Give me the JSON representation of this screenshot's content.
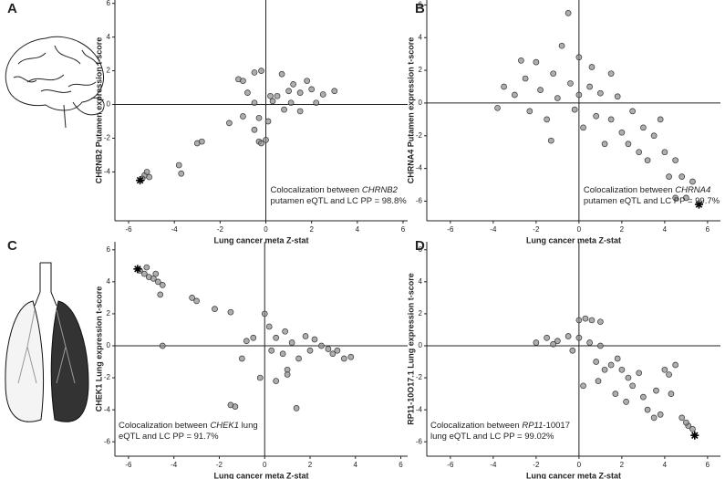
{
  "chart_data": [
    {
      "type": "scatter",
      "panel": "A",
      "x_label": "Lung cancer meta Z-stat",
      "y_label": "CHRNB2 Putamen expression t-score",
      "annotation": [
        [
          {
            "text": "Colocalization between "
          },
          {
            "text": "CHRNB2",
            "italic": true
          }
        ],
        [
          {
            "text": "putamen eQTL and LC PP = 98.8%"
          }
        ]
      ],
      "annotation_corner": "lower right",
      "color": "#8c8c8c",
      "xlim": [
        -6.6,
        6.2
      ],
      "ylim": [
        -6.9,
        6.2
      ],
      "xticks": [
        -6,
        -4,
        -2,
        0,
        2,
        4,
        6
      ],
      "yticks": [
        -4,
        -2,
        0,
        2,
        4,
        6
      ],
      "highlight": {
        "x": -5.5,
        "y": -4.5
      },
      "x": [
        -5.3,
        -5.2,
        -5.4,
        -5.1,
        -3.8,
        -3.7,
        -3.0,
        -2.8,
        -1.6,
        -1.0,
        -0.5,
        -0.3,
        0.0,
        -0.2,
        -0.5,
        0.2,
        0.5,
        1.0,
        1.2,
        1.5,
        2.0,
        2.5,
        3.0,
        -1.2,
        -1.0,
        -0.5,
        -0.2,
        0.3,
        0.8,
        1.5,
        1.1,
        2.2,
        0.1,
        -0.3,
        1.8,
        0.7,
        -0.8
      ],
      "values": [
        -4.2,
        -4.0,
        -4.4,
        -4.3,
        -3.6,
        -4.1,
        -2.3,
        -2.2,
        -1.1,
        -0.7,
        -1.5,
        -2.2,
        -2.1,
        -2.3,
        0.1,
        0.5,
        0.5,
        0.8,
        1.2,
        0.7,
        0.9,
        0.6,
        0.8,
        1.5,
        1.4,
        1.9,
        2.0,
        0.2,
        -0.3,
        -0.4,
        0.1,
        0.1,
        -1.0,
        -0.8,
        1.4,
        1.8,
        0.7
      ]
    },
    {
      "type": "scatter",
      "panel": "B",
      "x_label": "Lung cancer meta Z-stat",
      "y_label": "CHRNA4 Putamen expression t-score",
      "annotation": [
        [
          {
            "text": "Colocalization between "
          },
          {
            "text": "CHRNA4",
            "italic": true
          }
        ],
        [
          {
            "text": "putamen eQTL and LC PP = 99.7%"
          }
        ]
      ],
      "annotation_corner": "lower right",
      "color": "#8c8c8c",
      "xlim": [
        -7.1,
        6.6
      ],
      "ylim": [
        -7.2,
        6.3
      ],
      "xticks": [
        -6,
        -4,
        -2,
        0,
        2,
        4,
        6
      ],
      "yticks": [
        -6,
        -4,
        -2,
        0,
        2,
        4,
        6
      ],
      "highlight": {
        "x": 5.6,
        "y": -6.2
      },
      "x": [
        -3.5,
        -3.0,
        -2.5,
        -2.3,
        -2.0,
        -1.8,
        -1.5,
        -1.2,
        -1.0,
        -0.8,
        -0.5,
        -0.4,
        -0.2,
        0.0,
        0.0,
        0.2,
        0.5,
        0.8,
        1.0,
        1.2,
        1.5,
        1.8,
        2.0,
        2.3,
        2.5,
        2.8,
        3.0,
        3.2,
        3.5,
        4.0,
        4.2,
        4.5,
        4.8,
        4.5,
        5.0,
        5.3,
        -3.8,
        -1.3,
        0.6,
        1.5,
        -2.7,
        3.8
      ],
      "values": [
        1.0,
        0.5,
        1.5,
        -0.5,
        2.5,
        0.8,
        -1.0,
        1.8,
        0.3,
        3.5,
        5.5,
        1.2,
        -0.4,
        2.8,
        0.5,
        -1.5,
        1.0,
        -0.8,
        0.6,
        -2.5,
        -1.0,
        0.4,
        -1.8,
        -2.5,
        -0.5,
        -3.0,
        -1.5,
        -3.5,
        -2.0,
        -3.0,
        -4.5,
        -3.5,
        -4.5,
        -5.8,
        -5.8,
        -4.8,
        -0.3,
        -2.3,
        2.2,
        1.8,
        2.6,
        -1.0
      ]
    },
    {
      "type": "scatter",
      "panel": "C",
      "x_label": "Lung cancer meta Z-stat",
      "y_label": "CHEK1 Lung expression t-score",
      "annotation": [
        [
          {
            "text": "Colocalization between "
          },
          {
            "text": "CHEK1",
            "italic": true
          },
          {
            "text": " lung"
          }
        ],
        [
          {
            "text": "eQTL and LC PP = 91.7%"
          }
        ]
      ],
      "annotation_corner": "lower left",
      "color": "#8c8c8c",
      "xlim": [
        -6.6,
        6.3
      ],
      "ylim": [
        -6.9,
        6.5
      ],
      "xticks": [
        -6,
        -4,
        -2,
        0,
        2,
        4,
        6
      ],
      "yticks": [
        -6,
        -4,
        -2,
        0,
        2,
        4,
        6
      ],
      "highlight": {
        "x": -5.6,
        "y": 4.8
      },
      "x": [
        -5.5,
        -5.3,
        -5.1,
        -4.9,
        -4.7,
        -4.8,
        -4.5,
        -5.2,
        -4.6,
        -3.2,
        -3.0,
        -2.2,
        -1.5,
        -4.5,
        -1.5,
        -1.3,
        -1.0,
        -0.5,
        0.0,
        0.2,
        0.3,
        0.5,
        0.8,
        1.0,
        1.2,
        1.5,
        1.8,
        2.0,
        2.5,
        2.8,
        3.0,
        3.2,
        3.5,
        3.8,
        -0.2,
        0.5,
        1.0,
        2.2,
        -0.8,
        1.4,
        0.9
      ],
      "values": [
        4.7,
        4.5,
        4.3,
        4.2,
        4.0,
        4.5,
        3.8,
        4.9,
        3.2,
        3.0,
        2.8,
        2.3,
        2.1,
        0.0,
        -3.7,
        -3.8,
        -0.8,
        0.5,
        2.0,
        1.2,
        -0.3,
        0.5,
        -0.5,
        -1.5,
        0.2,
        -0.8,
        0.6,
        -0.3,
        0.0,
        -0.2,
        -0.5,
        -0.3,
        -0.8,
        -0.7,
        -2.0,
        -2.2,
        -1.8,
        0.4,
        0.3,
        -3.9,
        0.9
      ]
    },
    {
      "type": "scatter",
      "panel": "D",
      "x_label": "Lung cancer meta Z-stat",
      "y_label": "RP11-10O17.1 Lung expression t-score",
      "annotation": [
        [
          {
            "text": "Colocalization between "
          },
          {
            "text": "RP11",
            "italic": true
          },
          {
            "text": "-10017"
          }
        ],
        [
          {
            "text": "lung eQTL and LC PP = 99.02%"
          }
        ]
      ],
      "annotation_corner": "lower left",
      "color": "#8c8c8c",
      "xlim": [
        -7.1,
        6.6
      ],
      "ylim": [
        -6.9,
        6.5
      ],
      "xticks": [
        -6,
        -4,
        -2,
        0,
        2,
        4,
        6
      ],
      "yticks": [
        -6,
        -4,
        -2,
        0,
        2,
        4,
        6
      ],
      "highlight": {
        "x": 5.4,
        "y": -5.6
      },
      "x": [
        -2.0,
        -1.5,
        -1.0,
        -0.5,
        0.0,
        0.0,
        0.3,
        0.6,
        1.0,
        0.5,
        1.0,
        0.8,
        1.2,
        0.9,
        1.5,
        1.8,
        2.0,
        2.3,
        2.5,
        2.8,
        3.0,
        3.2,
        3.5,
        3.8,
        4.0,
        4.2,
        4.5,
        4.3,
        4.8,
        5.1,
        5.3,
        5.0,
        -0.3,
        0.2,
        1.7,
        2.2,
        -1.2,
        3.6
      ],
      "values": [
        0.2,
        0.5,
        0.3,
        0.6,
        0.5,
        1.6,
        1.7,
        1.6,
        1.5,
        0.2,
        0.0,
        -1.0,
        -1.5,
        -2.2,
        -1.2,
        -0.8,
        -1.5,
        -2.0,
        -2.5,
        -1.7,
        -3.2,
        -4.0,
        -4.5,
        -4.3,
        -1.5,
        -1.8,
        -1.2,
        -3.0,
        -4.5,
        -5.0,
        -5.2,
        -4.8,
        -0.3,
        -2.5,
        -3.0,
        -3.5,
        0.1,
        -2.8
      ]
    }
  ]
}
